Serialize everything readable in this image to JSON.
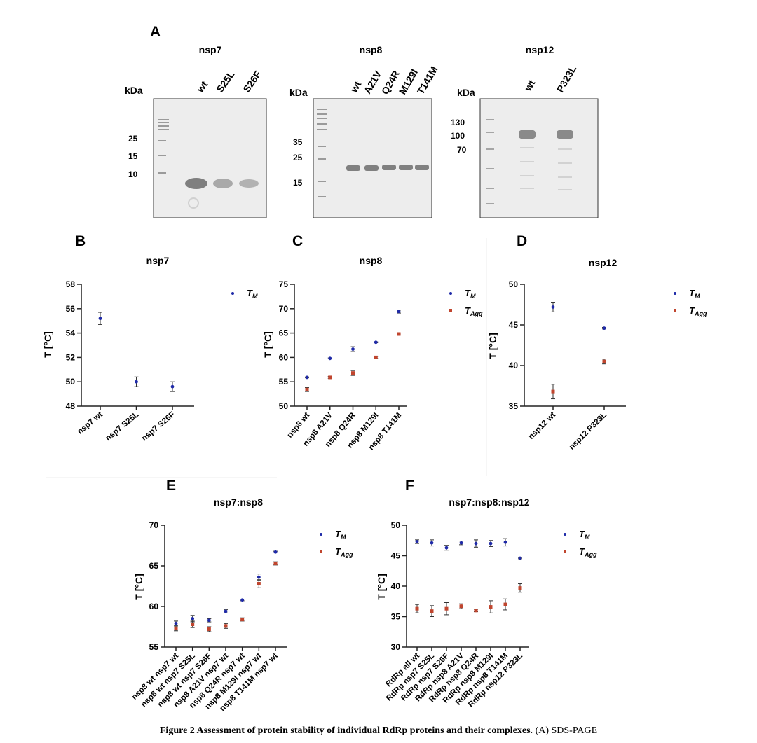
{
  "panel_A": {
    "letter": "A",
    "gels": [
      {
        "title": "nsp7",
        "kda_label": "kDa",
        "lanes": [
          "wt",
          "S25L",
          "S26F"
        ],
        "markers": [
          "25",
          "15",
          "10"
        ]
      },
      {
        "title": "nsp8",
        "kda_label": "kDa",
        "lanes": [
          "wt",
          "A21V",
          "Q24R",
          "M129I",
          "T141M"
        ],
        "markers": [
          "35",
          "25",
          "15"
        ]
      },
      {
        "title": "nsp12",
        "kda_label": "kDa",
        "lanes": [
          "wt",
          "P323L"
        ],
        "markers": [
          "130",
          "100",
          "70"
        ]
      }
    ]
  },
  "colors": {
    "tm": "#1f2aa8",
    "tagg": "#c0452e",
    "axis": "#222222",
    "gel_bg": "#ededed",
    "band": "#8a8a8a"
  },
  "legend": {
    "tm_main": "T",
    "tm_sub": "M",
    "tagg_main": "T",
    "tagg_sub": "Agg"
  },
  "y_axis_label": "T [°C]",
  "chart_data": [
    {
      "letter": "B",
      "title": "nsp7",
      "type": "scatter",
      "ylabel": "T [°C]",
      "ylim": [
        48,
        58
      ],
      "yticks": [
        "48",
        "50",
        "52",
        "54",
        "56",
        "58"
      ],
      "ytick_values": [
        48,
        50,
        52,
        54,
        56,
        58
      ],
      "categories": [
        "nsp7 wt",
        "nsp7 S25L",
        "nsp7 S26F"
      ],
      "series": [
        {
          "name": "TM",
          "values": [
            55.2,
            50.0,
            49.6
          ],
          "errors": [
            0.5,
            0.4,
            0.4
          ]
        }
      ]
    },
    {
      "letter": "C",
      "title": "nsp8",
      "type": "scatter",
      "ylabel": "T [°C]",
      "ylim": [
        50,
        75
      ],
      "yticks": [
        "50",
        "55",
        "60",
        "65",
        "70",
        "75"
      ],
      "ytick_values": [
        50,
        55,
        60,
        65,
        70,
        75
      ],
      "categories": [
        "nsp8 wt",
        "nsp8 A21V",
        "nsp8 Q24R",
        "nsp8 M129I",
        "nsp8 T141M"
      ],
      "series": [
        {
          "name": "TM",
          "values": [
            55.9,
            59.8,
            61.7,
            63.1,
            69.4
          ],
          "errors": [
            0.1,
            0.1,
            0.5,
            0.1,
            0.3
          ]
        },
        {
          "name": "TAgg",
          "values": [
            53.4,
            55.9,
            56.8,
            60.0,
            64.8
          ],
          "errors": [
            0.4,
            0.2,
            0.5,
            0.2,
            0.2
          ]
        }
      ]
    },
    {
      "letter": "D",
      "title": "nsp12",
      "type": "scatter",
      "ylabel": "T [°C]",
      "ylim": [
        35,
        50
      ],
      "yticks": [
        "35",
        "40",
        "45",
        "50"
      ],
      "ytick_values": [
        35,
        40,
        45,
        50
      ],
      "categories": [
        "nsp12 wt",
        "nsp12 P323L"
      ],
      "series": [
        {
          "name": "TM",
          "values": [
            47.2,
            44.6
          ],
          "errors": [
            0.6,
            0.1
          ]
        },
        {
          "name": "TAgg",
          "values": [
            36.8,
            40.5
          ],
          "errors": [
            0.9,
            0.3
          ]
        }
      ]
    },
    {
      "letter": "E",
      "title": "nsp7:nsp8",
      "type": "scatter",
      "ylabel": "T [°C]",
      "ylim": [
        55,
        70
      ],
      "yticks": [
        "55",
        "60",
        "65",
        "70"
      ],
      "ytick_values": [
        55,
        60,
        65,
        70
      ],
      "categories": [
        "nsp8 wt nsp7 wt",
        "nsp8 wt nsp7 S25L",
        "nsp8 wt nsp7 S26F",
        "nsp8 A21V nsp7 wt",
        "nsp8 Q24R nsp7 wt",
        "nsp8 M129I nsp7 wt",
        "nsp8 T141M nsp7 wt"
      ],
      "series": [
        {
          "name": "TM",
          "values": [
            57.9,
            58.5,
            58.3,
            59.4,
            60.8,
            63.6,
            66.7
          ],
          "errors": [
            0.3,
            0.4,
            0.2,
            0.2,
            0.1,
            0.4,
            0.1
          ]
        },
        {
          "name": "TAgg",
          "values": [
            57.3,
            57.8,
            57.2,
            57.6,
            58.4,
            62.8,
            65.3
          ],
          "errors": [
            0.3,
            0.4,
            0.3,
            0.3,
            0.2,
            0.5,
            0.2
          ]
        }
      ]
    },
    {
      "letter": "F",
      "title": "nsp7:nsp8:nsp12",
      "type": "scatter",
      "ylabel": "T [°C]",
      "ylim": [
        30,
        50
      ],
      "yticks": [
        "30",
        "35",
        "40",
        "45",
        "50"
      ],
      "ytick_values": [
        30,
        35,
        40,
        45,
        50
      ],
      "categories": [
        "RdRp all wt",
        "RdRp nsp7 S25L",
        "RdRp nsp7 S26F",
        "RdRp nsp8 A21V",
        "RdRp nsp8 Q24R",
        "RdRp nsp8 M129I",
        "RdRp nsp8 T141M",
        "RdRp nsp12 P323L"
      ],
      "series": [
        {
          "name": "TM",
          "values": [
            47.3,
            47.1,
            46.3,
            47.1,
            47.0,
            47.0,
            47.2,
            44.6
          ],
          "errors": [
            0.3,
            0.5,
            0.4,
            0.3,
            0.6,
            0.5,
            0.6,
            0.1
          ]
        },
        {
          "name": "TAgg",
          "values": [
            36.3,
            35.9,
            36.3,
            36.7,
            36.0,
            36.6,
            37.0,
            39.7
          ],
          "errors": [
            0.7,
            0.9,
            1.0,
            0.4,
            0.2,
            1.0,
            0.9,
            0.7
          ]
        }
      ]
    }
  ],
  "caption": {
    "bold": "Figure 2 Assessment of protein stability of individual RdRp proteins and their complexes",
    "rest": ". (A) SDS-PAGE"
  }
}
